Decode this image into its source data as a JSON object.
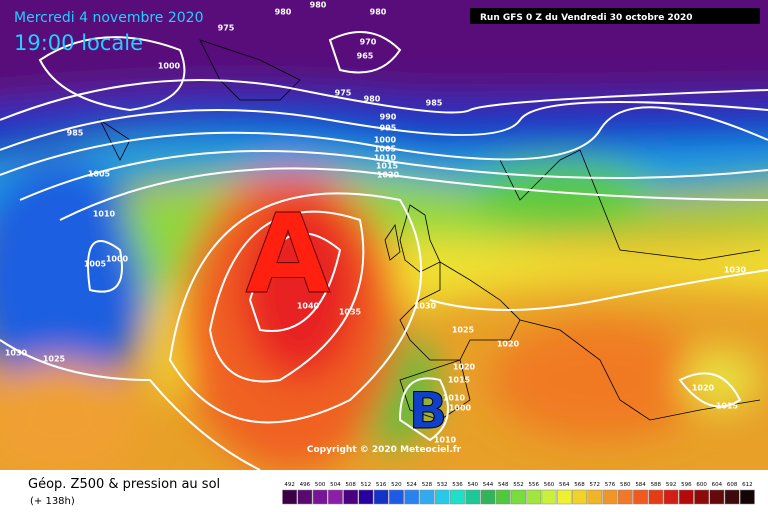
{
  "header": {
    "date": "Mercredi 4 novembre 2020",
    "time": "19:00 locale",
    "run": "Run GFS 0 Z du Vendredi 30 octobre 2020"
  },
  "map": {
    "high": "A",
    "low": "B",
    "copyright": "Copyright © 2020 Meteociel.fr",
    "isobar_labels": [
      "980",
      "980",
      "980",
      "975",
      "970",
      "965",
      "1000",
      "975",
      "980",
      "985",
      "985",
      "990",
      "995",
      "1000",
      "1005",
      "1010",
      "1015",
      "1020",
      "1005",
      "1010",
      "1000",
      "1005",
      "1040",
      "1035",
      "1030",
      "1025",
      "1020",
      "1020",
      "1015",
      "1010",
      "1000",
      "1010",
      "1030",
      "1025",
      "1030",
      "1020",
      "1015"
    ]
  },
  "legend": {
    "title": "Géop. Z500 & pression au sol",
    "lead_time": "(+ 138h)",
    "values": [
      492,
      496,
      500,
      504,
      508,
      512,
      516,
      520,
      524,
      528,
      532,
      536,
      540,
      544,
      548,
      552,
      556,
      560,
      564,
      568,
      572,
      576,
      580,
      584,
      588,
      592,
      596,
      600,
      604,
      608,
      612
    ],
    "colors": [
      "#3c0046",
      "#5a0a6e",
      "#781496",
      "#8c1eaa",
      "#4b0082",
      "#2800a0",
      "#1432c8",
      "#1e5ae6",
      "#2882f0",
      "#32aaf0",
      "#28c8e6",
      "#1ee0c8",
      "#1ec896",
      "#32b45a",
      "#50c83c",
      "#78dc3c",
      "#a0e63c",
      "#c8f03c",
      "#f0f032",
      "#f0d228",
      "#f0b428",
      "#f09628",
      "#f07828",
      "#f05a1e",
      "#e63c14",
      "#d21e14",
      "#b40a0a",
      "#8c0a0a",
      "#640a0a",
      "#3c0a0a",
      "#140505"
    ]
  }
}
